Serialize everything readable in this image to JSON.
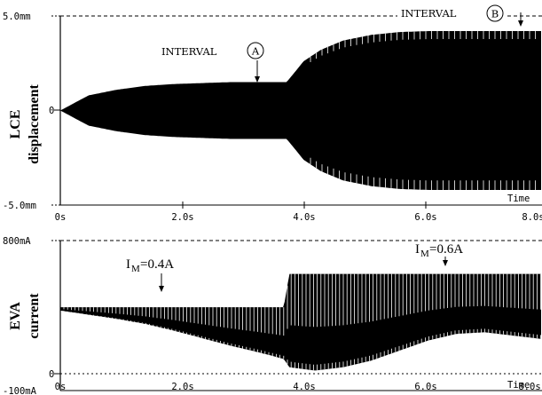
{
  "chart_data": [
    {
      "type": "line",
      "ylabel_line1": "LCE",
      "ylabel_line2": "displacement",
      "xlabel": "Time",
      "xlim": [
        0,
        8.5
      ],
      "ylim": [
        -5.0,
        5.0
      ],
      "y_unit": "mm",
      "x_tick_labels": [
        "0s",
        "2.0s",
        "4.0s",
        "6.0s",
        "8.0s"
      ],
      "y_tick_labels": [
        "5.0mm",
        "0",
        "-5.0mm"
      ],
      "y_tick_values": [
        5.0,
        0,
        -5.0
      ],
      "envelope": {
        "x": [
          0,
          0.5,
          1.0,
          1.5,
          2.0,
          2.5,
          3.0,
          3.5,
          4.0,
          4.3,
          4.6,
          5.0,
          5.5,
          6.0,
          6.5,
          7.0,
          7.5,
          8.0,
          8.5
        ],
        "upper": [
          0,
          0.8,
          1.1,
          1.3,
          1.4,
          1.45,
          1.5,
          1.5,
          1.5,
          2.6,
          3.2,
          3.7,
          4.0,
          4.15,
          4.2,
          4.2,
          4.2,
          4.2,
          4.2
        ],
        "lower": [
          0,
          -0.8,
          -1.1,
          -1.3,
          -1.4,
          -1.45,
          -1.5,
          -1.5,
          -1.5,
          -2.6,
          -3.2,
          -3.7,
          -4.0,
          -4.15,
          -4.2,
          -4.2,
          -4.2,
          -4.2,
          -4.2
        ]
      },
      "annotations": [
        {
          "prefix": "INTERVAL",
          "circled": "A",
          "x": 3.6,
          "y": 1.5
        },
        {
          "prefix": "INTERVAL",
          "circled": "B",
          "x": 8.1,
          "y": 4.2
        }
      ]
    },
    {
      "type": "line",
      "ylabel_line1": "EVA",
      "ylabel_line2": "current",
      "xlabel": "Time",
      "xlim": [
        0,
        8.5
      ],
      "ylim": [
        -100,
        800
      ],
      "y_unit": "mA",
      "x_tick_labels": [
        "0s",
        "2.0s",
        "4.0s",
        "6.0s",
        "8.0s"
      ],
      "y_tick_labels": [
        "800mA",
        "0",
        "-100mA"
      ],
      "y_tick_values": [
        800,
        0,
        -100
      ],
      "envelope": {
        "x": [
          0,
          0.5,
          1.0,
          1.5,
          2.0,
          2.5,
          3.0,
          3.5,
          3.95,
          4.05,
          4.5,
          5.0,
          5.5,
          6.0,
          6.5,
          7.0,
          7.5,
          8.0,
          8.5
        ],
        "upper": [
          400,
          400,
          400,
          400,
          400,
          400,
          400,
          400,
          400,
          600,
          600,
          600,
          600,
          600,
          600,
          600,
          600,
          600,
          600
        ],
        "lower": [
          380,
          355,
          330,
          300,
          260,
          215,
          170,
          130,
          90,
          40,
          20,
          40,
          80,
          140,
          200,
          240,
          250,
          230,
          210
        ]
      },
      "annotations": [
        {
          "symbol": "I",
          "subscript": "M",
          "value": "=0.4A",
          "x": 1.8,
          "y": 400
        },
        {
          "symbol": "I",
          "subscript": "M",
          "value": "=0.6A",
          "x": 6.0,
          "y": 600
        }
      ]
    }
  ]
}
